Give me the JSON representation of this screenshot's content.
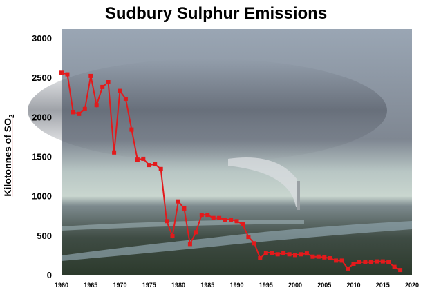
{
  "chart_data": {
    "type": "line",
    "title": "Sudbury Sulphur Emissions",
    "ylabel_main": "Kilotonnes of SO",
    "ylabel_sub": "2",
    "xlabel": "",
    "xlim": [
      1960,
      2020
    ],
    "ylim": [
      0,
      3000
    ],
    "xticks": [
      "1960",
      "1965",
      "1970",
      "1975",
      "1980",
      "1985",
      "1990",
      "1995",
      "2000",
      "2005",
      "2010",
      "2015",
      "2020"
    ],
    "yticks": [
      "0",
      "500",
      "1000",
      "1500",
      "2000",
      "2500",
      "3000"
    ],
    "grid": false,
    "background": "photograph of smelter plume over landscape",
    "series": [
      {
        "color": "#e31a1c",
        "x": [
          1960,
          1961,
          1962,
          1963,
          1964,
          1965,
          1966,
          1967,
          1968,
          1969,
          1970,
          1971,
          1972,
          1973,
          1974,
          1975,
          1976,
          1977,
          1978,
          1979,
          1980,
          1981,
          1982,
          1983,
          1984,
          1985,
          1986,
          1987,
          1988,
          1989,
          1990,
          1991,
          1992,
          1993,
          1994,
          1995,
          1996,
          1997,
          1998,
          1999,
          2000,
          2001,
          2002,
          2003,
          2004,
          2005,
          2006,
          2007,
          2008,
          2009,
          2010,
          2011,
          2012,
          2013,
          2014,
          2015,
          2016,
          2017,
          2018
        ],
        "y": [
          2560,
          2540,
          2060,
          2040,
          2100,
          2520,
          2150,
          2380,
          2440,
          1550,
          2330,
          2230,
          1840,
          1460,
          1470,
          1390,
          1400,
          1340,
          680,
          490,
          930,
          840,
          390,
          540,
          760,
          760,
          720,
          720,
          700,
          700,
          680,
          640,
          480,
          400,
          210,
          280,
          280,
          260,
          280,
          260,
          250,
          260,
          270,
          230,
          230,
          220,
          210,
          180,
          180,
          80,
          140,
          160,
          160,
          160,
          170,
          170,
          160,
          100,
          60
        ]
      }
    ]
  }
}
